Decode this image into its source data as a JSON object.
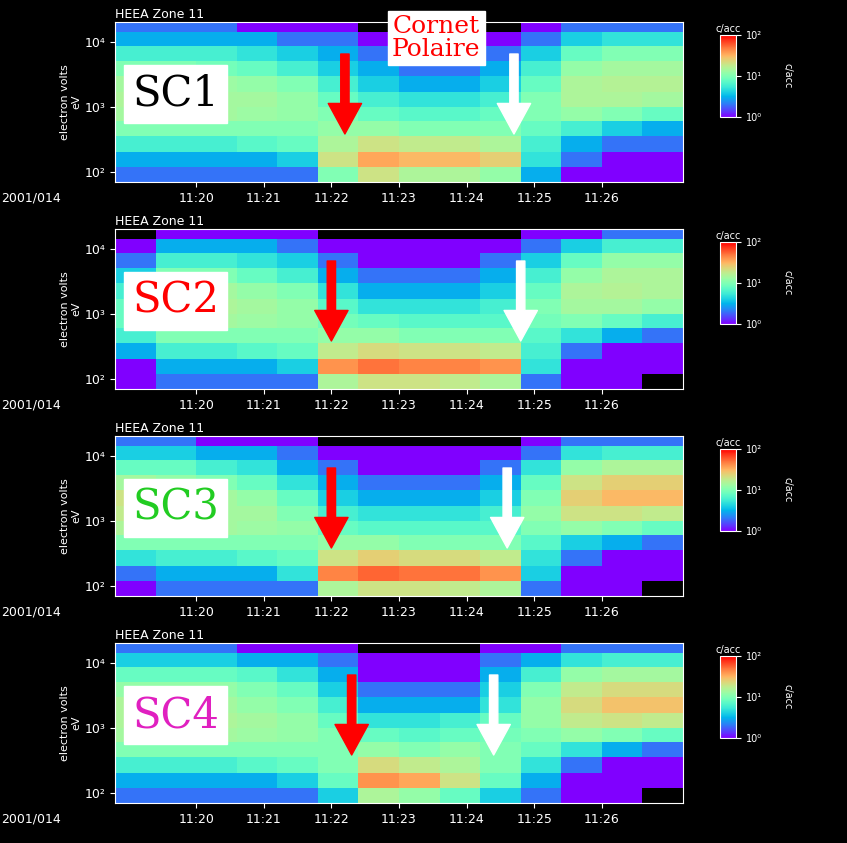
{
  "annotation": {
    "text": "Cornet\nPolaire",
    "color": "red"
  },
  "chart_data": [
    {
      "type": "heatmap",
      "title": "HEEA Zone 11",
      "label": "SC1",
      "color": "black",
      "date_label": "2001/014",
      "ylabel": "electron volts\neV",
      "log": "y",
      "xlim": [
        18.8,
        27.2
      ],
      "xticks": [
        {
          "value": 20,
          "label": "11:20"
        },
        {
          "value": 21,
          "label": "11:21"
        },
        {
          "value": 22,
          "label": "11:22"
        },
        {
          "value": 23,
          "label": "11:23"
        },
        {
          "value": 24,
          "label": "11:24"
        },
        {
          "value": 25,
          "label": "11:25"
        },
        {
          "value": 26,
          "label": "11:26"
        }
      ],
      "ylim": [
        70,
        20000
      ],
      "yticks": [
        {
          "value": 100,
          "label": "10²"
        },
        {
          "value": 1000,
          "label": "10³"
        },
        {
          "value": 10000,
          "label": "10⁴"
        }
      ],
      "x_bins": [
        18.8,
        19.4,
        20.0,
        20.6,
        21.2,
        21.8,
        22.4,
        23.0,
        23.6,
        24.2,
        24.8,
        25.4,
        26.0,
        26.6,
        27.2
      ],
      "y_bins": [
        70,
        120,
        200,
        350,
        600,
        1000,
        1700,
        3000,
        5000,
        8500,
        14000,
        20000
      ],
      "counts": [
        [
          2,
          2,
          2,
          2,
          2,
          10,
          20,
          15,
          15,
          12,
          3,
          1,
          1,
          1
        ],
        [
          3,
          3,
          3,
          3,
          4,
          20,
          35,
          30,
          30,
          25,
          5,
          2,
          1,
          1
        ],
        [
          6,
          6,
          6,
          7,
          8,
          15,
          20,
          18,
          18,
          15,
          6,
          3,
          2,
          2
        ],
        [
          10,
          10,
          10,
          10,
          10,
          12,
          12,
          10,
          10,
          10,
          8,
          6,
          4,
          3
        ],
        [
          14,
          14,
          14,
          13,
          12,
          10,
          8,
          7,
          7,
          8,
          10,
          12,
          10,
          8
        ],
        [
          15,
          15,
          14,
          14,
          12,
          8,
          6,
          5,
          5,
          6,
          10,
          15,
          15,
          14
        ],
        [
          14,
          14,
          13,
          12,
          10,
          6,
          4,
          3,
          3,
          4,
          8,
          15,
          16,
          16
        ],
        [
          10,
          10,
          9,
          8,
          6,
          4,
          3,
          2,
          2,
          3,
          6,
          12,
          14,
          14
        ],
        [
          6,
          6,
          6,
          5,
          4,
          3,
          2,
          1,
          1,
          2,
          4,
          8,
          10,
          10
        ],
        [
          3,
          3,
          3,
          3,
          2,
          2,
          1,
          1,
          1,
          1,
          2,
          4,
          5,
          5
        ],
        [
          2,
          2,
          2,
          1,
          1,
          1,
          0,
          0,
          0,
          0,
          1,
          2,
          2,
          2
        ]
      ],
      "colorbar": {
        "range": [
          1,
          100
        ],
        "ticks": [
          {
            "value": 1,
            "label": "10⁰"
          },
          {
            "value": 10,
            "label": "10¹"
          },
          {
            "value": 100,
            "label": "10²"
          }
        ],
        "label": "c/acc"
      },
      "arrows": [
        {
          "x": 22.2,
          "color": "red"
        },
        {
          "x": 24.7,
          "color": "white"
        }
      ]
    },
    {
      "type": "heatmap",
      "title": "HEEA Zone 11",
      "label": "SC2",
      "color": "red",
      "date_label": "2001/014",
      "ylabel": "electron volts\neV",
      "log": "y",
      "xlim": [
        18.8,
        27.2
      ],
      "xticks": [
        {
          "value": 20,
          "label": "11:20"
        },
        {
          "value": 21,
          "label": "11:21"
        },
        {
          "value": 22,
          "label": "11:22"
        },
        {
          "value": 23,
          "label": "11:23"
        },
        {
          "value": 24,
          "label": "11:24"
        },
        {
          "value": 25,
          "label": "11:25"
        },
        {
          "value": 26,
          "label": "11:26"
        }
      ],
      "ylim": [
        70,
        20000
      ],
      "yticks": [
        {
          "value": 100,
          "label": "10²"
        },
        {
          "value": 1000,
          "label": "10³"
        },
        {
          "value": 10000,
          "label": "10⁴"
        }
      ],
      "x_bins": [
        18.8,
        19.4,
        20.0,
        20.6,
        21.2,
        21.8,
        22.4,
        23.0,
        23.6,
        24.2,
        24.8,
        25.4,
        26.0,
        26.6,
        27.2
      ],
      "y_bins": [
        70,
        120,
        200,
        350,
        600,
        1000,
        1700,
        3000,
        5000,
        8500,
        14000,
        20000
      ],
      "counts": [
        [
          1,
          2,
          2,
          2,
          2,
          15,
          20,
          20,
          18,
          15,
          2,
          1,
          1,
          0
        ],
        [
          1,
          3,
          3,
          3,
          4,
          40,
          50,
          45,
          45,
          40,
          5,
          1,
          1,
          1
        ],
        [
          3,
          6,
          6,
          7,
          8,
          18,
          22,
          20,
          20,
          18,
          6,
          2,
          1,
          1
        ],
        [
          6,
          10,
          10,
          10,
          10,
          12,
          12,
          10,
          10,
          10,
          7,
          5,
          3,
          2
        ],
        [
          8,
          14,
          14,
          13,
          12,
          9,
          8,
          7,
          7,
          7,
          9,
          10,
          8,
          6
        ],
        [
          8,
          15,
          15,
          14,
          12,
          7,
          5,
          5,
          5,
          6,
          10,
          14,
          14,
          12
        ],
        [
          6,
          14,
          14,
          12,
          10,
          5,
          3,
          3,
          3,
          4,
          8,
          15,
          16,
          15
        ],
        [
          4,
          10,
          10,
          8,
          6,
          3,
          2,
          2,
          2,
          3,
          6,
          12,
          15,
          15
        ],
        [
          2,
          6,
          6,
          5,
          4,
          2,
          1,
          1,
          1,
          2,
          4,
          8,
          12,
          12
        ],
        [
          1,
          3,
          3,
          3,
          2,
          1,
          1,
          1,
          1,
          1,
          2,
          4,
          6,
          6
        ],
        [
          0,
          1,
          1,
          1,
          1,
          0,
          0,
          0,
          0,
          0,
          1,
          1,
          2,
          2
        ]
      ],
      "colorbar": {
        "range": [
          1,
          100
        ],
        "ticks": [
          {
            "value": 1,
            "label": "10⁰"
          },
          {
            "value": 10,
            "label": "10¹"
          },
          {
            "value": 100,
            "label": "10²"
          }
        ],
        "label": "c/acc"
      },
      "arrows": [
        {
          "x": 22.0,
          "color": "red"
        },
        {
          "x": 24.8,
          "color": "white"
        }
      ]
    },
    {
      "type": "heatmap",
      "title": "HEEA Zone 11",
      "label": "SC3",
      "color": "#22cc22",
      "date_label": "2001/014",
      "ylabel": "electron volts\neV",
      "log": "y",
      "xlim": [
        18.8,
        27.2
      ],
      "xticks": [
        {
          "value": 20,
          "label": "11:20"
        },
        {
          "value": 21,
          "label": "11:21"
        },
        {
          "value": 22,
          "label": "11:22"
        },
        {
          "value": 23,
          "label": "11:23"
        },
        {
          "value": 24,
          "label": "11:24"
        },
        {
          "value": 25,
          "label": "11:25"
        },
        {
          "value": 26,
          "label": "11:26"
        }
      ],
      "ylim": [
        70,
        20000
      ],
      "yticks": [
        {
          "value": 100,
          "label": "10²"
        },
        {
          "value": 1000,
          "label": "10³"
        },
        {
          "value": 10000,
          "label": "10⁴"
        }
      ],
      "x_bins": [
        18.8,
        19.4,
        20.0,
        20.6,
        21.2,
        21.8,
        22.4,
        23.0,
        23.6,
        24.2,
        24.8,
        25.4,
        26.0,
        26.6,
        27.2
      ],
      "y_bins": [
        70,
        120,
        200,
        350,
        600,
        1000,
        1700,
        3000,
        5000,
        8500,
        14000,
        20000
      ],
      "counts": [
        [
          1,
          2,
          2,
          2,
          2,
          15,
          20,
          20,
          18,
          15,
          2,
          1,
          1,
          0
        ],
        [
          2,
          3,
          3,
          3,
          5,
          45,
          55,
          50,
          50,
          40,
          4,
          1,
          1,
          1
        ],
        [
          5,
          6,
          6,
          7,
          8,
          20,
          25,
          22,
          22,
          18,
          5,
          2,
          1,
          1
        ],
        [
          10,
          10,
          10,
          10,
          10,
          12,
          12,
          10,
          10,
          10,
          7,
          4,
          3,
          2
        ],
        [
          15,
          14,
          14,
          13,
          12,
          8,
          7,
          7,
          7,
          7,
          10,
          12,
          10,
          8
        ],
        [
          18,
          15,
          14,
          14,
          10,
          6,
          5,
          5,
          5,
          6,
          12,
          20,
          20,
          18
        ],
        [
          20,
          16,
          14,
          12,
          8,
          4,
          3,
          3,
          3,
          4,
          10,
          25,
          30,
          30
        ],
        [
          14,
          12,
          10,
          8,
          5,
          3,
          2,
          2,
          2,
          3,
          8,
          20,
          25,
          25
        ],
        [
          8,
          8,
          6,
          5,
          3,
          2,
          1,
          1,
          1,
          2,
          5,
          12,
          15,
          15
        ],
        [
          4,
          4,
          3,
          3,
          2,
          1,
          1,
          1,
          1,
          1,
          2,
          5,
          6,
          6
        ],
        [
          2,
          2,
          1,
          1,
          1,
          0,
          0,
          0,
          0,
          0,
          1,
          2,
          2,
          2
        ]
      ],
      "colorbar": {
        "range": [
          1,
          100
        ],
        "ticks": [
          {
            "value": 1,
            "label": "10⁰"
          },
          {
            "value": 10,
            "label": "10¹"
          },
          {
            "value": 100,
            "label": "10²"
          }
        ],
        "label": "c/acc"
      },
      "arrows": [
        {
          "x": 22.0,
          "color": "red"
        },
        {
          "x": 24.6,
          "color": "white"
        }
      ]
    },
    {
      "type": "heatmap",
      "title": "HEEA Zone 11",
      "label": "SC4",
      "color": "#e020c0",
      "date_label": "2001/014",
      "ylabel": "electron volts\neV",
      "log": "y",
      "xlim": [
        18.8,
        27.2
      ],
      "xticks": [
        {
          "value": 20,
          "label": "11:20"
        },
        {
          "value": 21,
          "label": "11:21"
        },
        {
          "value": 22,
          "label": "11:22"
        },
        {
          "value": 23,
          "label": "11:23"
        },
        {
          "value": 24,
          "label": "11:24"
        },
        {
          "value": 25,
          "label": "11:25"
        },
        {
          "value": 26,
          "label": "11:26"
        }
      ],
      "ylim": [
        70,
        20000
      ],
      "yticks": [
        {
          "value": 100,
          "label": "10²"
        },
        {
          "value": 1000,
          "label": "10³"
        },
        {
          "value": 10000,
          "label": "10⁴"
        }
      ],
      "x_bins": [
        18.8,
        19.4,
        20.0,
        20.6,
        21.2,
        21.8,
        22.4,
        23.0,
        23.6,
        24.2,
        24.8,
        25.4,
        26.0,
        26.6,
        27.2
      ],
      "y_bins": [
        70,
        120,
        200,
        350,
        600,
        1000,
        1700,
        3000,
        5000,
        8500,
        14000,
        20000
      ],
      "counts": [
        [
          2,
          2,
          2,
          2,
          2,
          4,
          15,
          12,
          8,
          4,
          2,
          1,
          1,
          0
        ],
        [
          3,
          3,
          3,
          3,
          4,
          8,
          40,
          35,
          20,
          8,
          3,
          1,
          1,
          1
        ],
        [
          6,
          6,
          6,
          7,
          8,
          10,
          22,
          18,
          15,
          10,
          5,
          2,
          1,
          1
        ],
        [
          10,
          10,
          10,
          10,
          10,
          10,
          12,
          10,
          12,
          10,
          8,
          5,
          3,
          2
        ],
        [
          14,
          14,
          14,
          13,
          12,
          10,
          8,
          7,
          8,
          9,
          10,
          12,
          10,
          8
        ],
        [
          15,
          15,
          15,
          14,
          12,
          8,
          5,
          5,
          6,
          8,
          12,
          18,
          20,
          18
        ],
        [
          15,
          15,
          14,
          12,
          10,
          6,
          3,
          3,
          3,
          5,
          12,
          22,
          28,
          28
        ],
        [
          12,
          12,
          12,
          10,
          8,
          4,
          2,
          2,
          2,
          4,
          10,
          18,
          22,
          22
        ],
        [
          8,
          8,
          8,
          7,
          5,
          3,
          1,
          1,
          1,
          3,
          6,
          12,
          14,
          14
        ],
        [
          4,
          4,
          4,
          3,
          3,
          2,
          1,
          1,
          1,
          2,
          3,
          5,
          6,
          6
        ],
        [
          2,
          2,
          2,
          1,
          1,
          1,
          0,
          0,
          0,
          1,
          1,
          2,
          2,
          2
        ]
      ],
      "colorbar": {
        "range": [
          1,
          100
        ],
        "ticks": [
          {
            "value": 1,
            "label": "10⁰"
          },
          {
            "value": 10,
            "label": "10¹"
          },
          {
            "value": 100,
            "label": "10²"
          }
        ],
        "label": "c/acc"
      },
      "arrows": [
        {
          "x": 22.3,
          "color": "red"
        },
        {
          "x": 24.4,
          "color": "white"
        }
      ]
    }
  ]
}
